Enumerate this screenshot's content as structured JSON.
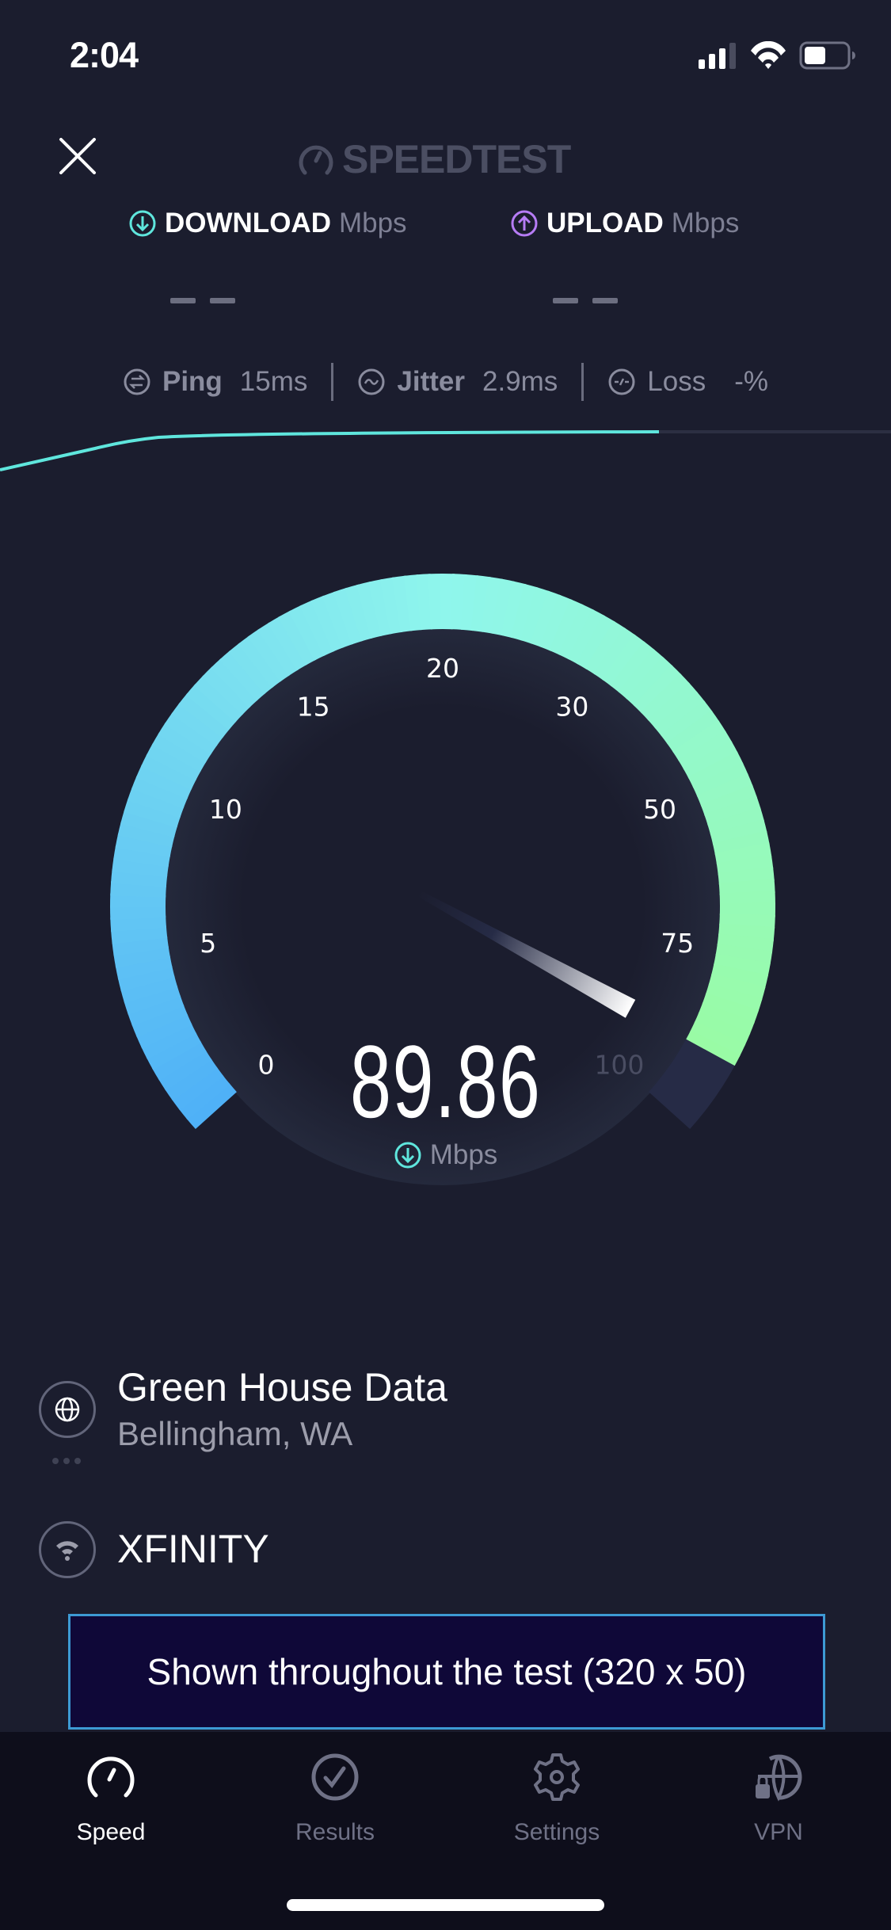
{
  "status_bar": {
    "time": "2:04",
    "signal_bars": 3,
    "battery_level": 0.45
  },
  "header": {
    "close_icon": "close-icon",
    "logo_text": "SPEEDTEST"
  },
  "results": {
    "download": {
      "label": "DOWNLOAD",
      "unit": "Mbps",
      "value": "— —",
      "color": "#5fe6dd"
    },
    "upload": {
      "label": "UPLOAD",
      "unit": "Mbps",
      "value": "— —",
      "color": "#b67cf5"
    }
  },
  "metrics": {
    "ping": {
      "label": "Ping",
      "value": "15",
      "unit": "ms"
    },
    "jitter": {
      "label": "Jitter",
      "value": "2.9",
      "unit": "ms"
    },
    "loss": {
      "label": "Loss",
      "value": "-",
      "unit": "%"
    }
  },
  "gauge": {
    "ticks": [
      "0",
      "5",
      "10",
      "15",
      "20",
      "30",
      "50",
      "75",
      "100"
    ],
    "value": 89.86,
    "value_text": "89.86",
    "unit": "Mbps",
    "colors": {
      "start": "#4fb1f7",
      "mid": "#8ff6ec",
      "end": "#9afc9c",
      "track": "#262b46"
    }
  },
  "server": {
    "name": "Green House Data",
    "location": "Bellingham, WA"
  },
  "isp": {
    "name": "XFINITY"
  },
  "ad": {
    "text": "Shown throughout the test (320 x 50)"
  },
  "tabs": [
    {
      "label": "Speed",
      "icon": "speedometer-icon",
      "active": true
    },
    {
      "label": "Results",
      "icon": "check-circle-icon",
      "active": false
    },
    {
      "label": "Settings",
      "icon": "gear-icon",
      "active": false
    },
    {
      "label": "VPN",
      "icon": "globe-lock-icon",
      "active": false
    }
  ]
}
